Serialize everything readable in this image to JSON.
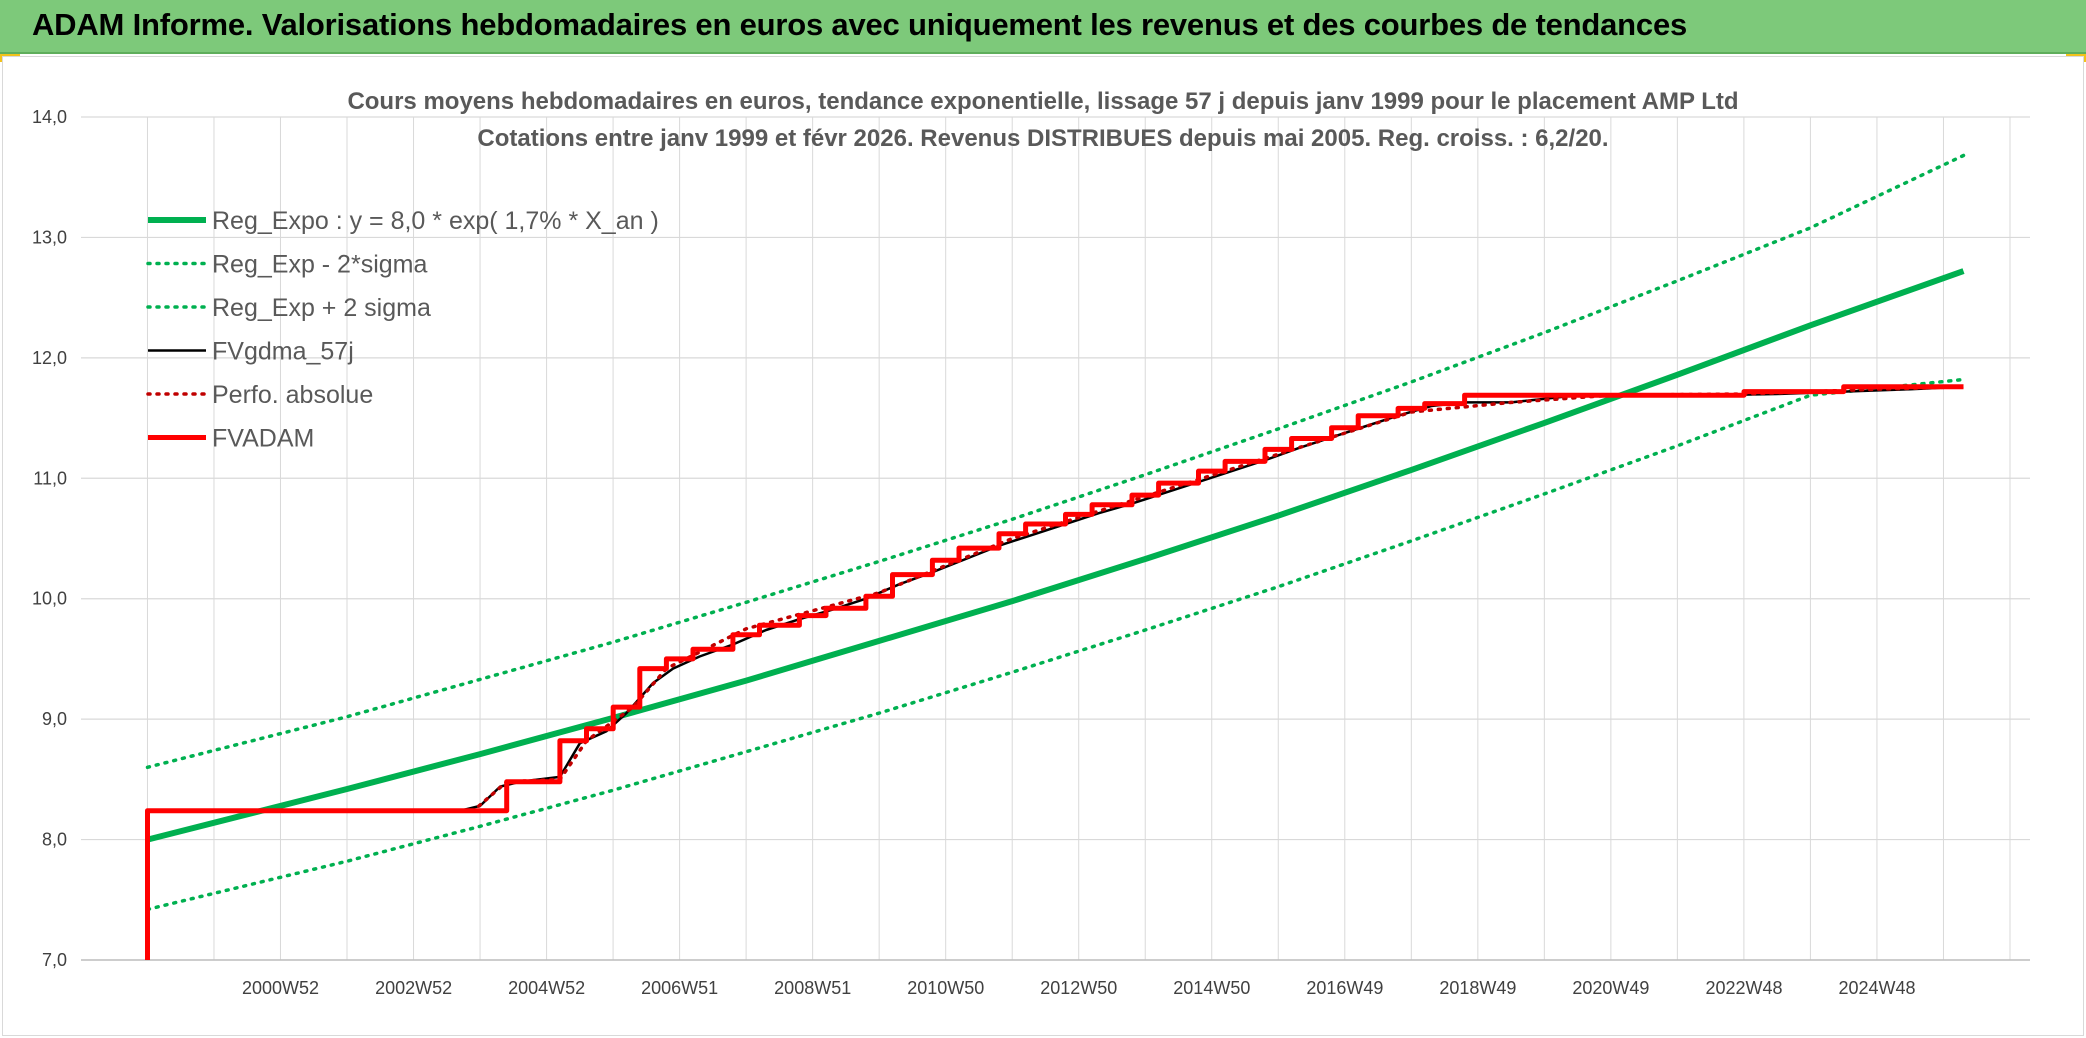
{
  "header": {
    "title": "ADAM Informe. Valorisations hebdomadaires en euros avec uniquement les revenus et des courbes de tendances"
  },
  "colors": {
    "banner": "#7dc97a",
    "trend": "#00b050",
    "smooth": "#000000",
    "perfo": "#c00000",
    "fvadam": "#ff0000",
    "grid": "#d9d9d9"
  },
  "chart_data": {
    "type": "line",
    "title": "Cours moyens hebdomadaires en euros, tendance exponentielle, lissage 57 j depuis janv 1999 pour le placement AMP Ltd",
    "subtitle": "Cotations entre janv 1999 et févr 2026. Revenus DISTRIBUES depuis mai 2005. Reg. croiss. : 6,2/20.",
    "xlabel": "",
    "ylabel": "",
    "ylim": [
      7.0,
      14.0
    ],
    "xlim": [
      1998.0,
      2027.3
    ],
    "y_ticks": [
      "7,0",
      "8,0",
      "9,0",
      "10,0",
      "11,0",
      "12,0",
      "13,0",
      "14,0"
    ],
    "x_tick_labels": [
      "2000W52",
      "2002W52",
      "2004W52",
      "2006W51",
      "2008W51",
      "2010W50",
      "2012W50",
      "2014W50",
      "2016W49",
      "2018W49",
      "2020W49",
      "2022W48",
      "2024W48"
    ],
    "grid": true,
    "legend_position": "top-left",
    "series": [
      {
        "name": "Reg_Expo : y = 8,0 * exp( 1,7% *  X_an )",
        "style": "solid-thick",
        "color": "#00b050",
        "x": [
          1999.0,
          2000.5,
          2002.0,
          2004.0,
          2006.0,
          2008.0,
          2010.0,
          2012.0,
          2014.0,
          2016.0,
          2018.0,
          2020.0,
          2022.0,
          2024.0,
          2026.3
        ],
        "values": [
          8.0,
          8.21,
          8.42,
          8.71,
          9.01,
          9.32,
          9.65,
          9.98,
          10.33,
          10.69,
          11.07,
          11.46,
          11.86,
          12.27,
          12.72
        ]
      },
      {
        "name": "Reg_Exp - 2*sigma",
        "style": "dotted",
        "color": "#00b050",
        "x": [
          1999.0,
          2002.0,
          2004.0,
          2006.0,
          2008.0,
          2010.0,
          2012.0,
          2014.0,
          2016.0,
          2018.0,
          2020.0,
          2022.0,
          2024.0,
          2026.3
        ],
        "values": [
          7.42,
          7.82,
          8.11,
          8.41,
          8.73,
          9.05,
          9.39,
          9.74,
          10.1,
          10.48,
          10.87,
          11.27,
          11.69,
          11.82
        ]
      },
      {
        "name": "Reg_Exp + 2 sigma",
        "style": "dotted",
        "color": "#00b050",
        "x": [
          1999.0,
          2002.0,
          2004.0,
          2006.0,
          2008.0,
          2010.0,
          2012.0,
          2014.0,
          2016.0,
          2018.0,
          2020.0,
          2022.0,
          2024.0,
          2026.3
        ],
        "values": [
          8.6,
          9.02,
          9.33,
          9.64,
          9.97,
          10.31,
          10.66,
          11.03,
          11.41,
          11.8,
          12.21,
          12.64,
          13.08,
          13.68
        ]
      },
      {
        "name": "FVgdma_57j",
        "style": "solid-thin",
        "color": "#000000",
        "x": [
          1999.0,
          2003.7,
          2004.0,
          2004.3,
          2004.6,
          2005.2,
          2005.5,
          2005.9,
          2006.2,
          2006.6,
          2006.9,
          2007.3,
          2007.8,
          2008.3,
          2008.8,
          2009.3,
          2009.8,
          2010.3,
          2010.8,
          2011.3,
          2011.8,
          2012.3,
          2012.8,
          2013.3,
          2013.8,
          2014.3,
          2014.8,
          2015.3,
          2015.8,
          2016.3,
          2016.8,
          2017.3,
          2017.8,
          2018.3,
          2018.8,
          2019.5,
          2020.5,
          2021.5,
          2022.5,
          2023.5,
          2024.5,
          2025.5,
          2026.3
        ],
        "values": [
          8.24,
          8.24,
          8.28,
          8.44,
          8.48,
          8.52,
          8.8,
          8.9,
          9.05,
          9.3,
          9.42,
          9.52,
          9.62,
          9.74,
          9.83,
          9.91,
          10.0,
          10.12,
          10.22,
          10.33,
          10.44,
          10.53,
          10.62,
          10.71,
          10.79,
          10.88,
          10.97,
          11.06,
          11.15,
          11.25,
          11.34,
          11.43,
          11.52,
          11.6,
          11.63,
          11.63,
          11.69,
          11.69,
          11.69,
          11.7,
          11.72,
          11.74,
          11.76
        ]
      },
      {
        "name": "Perfo. absolue",
        "style": "dotted",
        "color": "#c00000",
        "x": [
          1999.0,
          2003.9,
          2004.4,
          2005.2,
          2005.6,
          2006.3,
          2006.8,
          2008.0,
          2010.0,
          2012.0,
          2014.0,
          2016.0,
          2018.0,
          2019.5,
          2021.0,
          2023.0,
          2025.0,
          2026.3
        ],
        "values": [
          8.24,
          8.24,
          8.48,
          8.5,
          8.82,
          9.1,
          9.42,
          9.75,
          10.05,
          10.5,
          10.85,
          11.2,
          11.55,
          11.63,
          11.69,
          11.7,
          11.74,
          11.76
        ]
      },
      {
        "name": "FVADAM",
        "style": "step-thick",
        "color": "#ff0000",
        "x": [
          1999.0,
          1999.0,
          2004.4,
          2004.4,
          2005.2,
          2005.2,
          2005.6,
          2005.6,
          2006.0,
          2006.0,
          2006.4,
          2006.4,
          2006.8,
          2006.8,
          2007.2,
          2007.2,
          2007.8,
          2007.8,
          2008.2,
          2008.2,
          2008.8,
          2008.8,
          2009.2,
          2009.2,
          2009.8,
          2009.8,
          2010.2,
          2010.2,
          2010.8,
          2010.8,
          2011.2,
          2011.2,
          2011.8,
          2011.8,
          2012.2,
          2012.2,
          2012.8,
          2012.8,
          2013.2,
          2013.2,
          2013.8,
          2013.8,
          2014.2,
          2014.2,
          2014.8,
          2014.8,
          2015.2,
          2015.2,
          2015.8,
          2015.8,
          2016.2,
          2016.2,
          2016.8,
          2016.8,
          2017.2,
          2017.2,
          2017.8,
          2017.8,
          2018.2,
          2018.2,
          2018.8,
          2018.8,
          2020.5,
          2020.5,
          2023.0,
          2023.0,
          2024.5,
          2024.5,
          2026.3
        ],
        "values": [
          7.0,
          8.24,
          8.24,
          8.48,
          8.48,
          8.82,
          8.82,
          8.92,
          8.92,
          9.1,
          9.1,
          9.42,
          9.42,
          9.5,
          9.5,
          9.58,
          9.58,
          9.7,
          9.7,
          9.78,
          9.78,
          9.86,
          9.86,
          9.92,
          9.92,
          10.02,
          10.02,
          10.2,
          10.2,
          10.32,
          10.32,
          10.42,
          10.42,
          10.54,
          10.54,
          10.62,
          10.62,
          10.7,
          10.7,
          10.78,
          10.78,
          10.86,
          10.86,
          10.96,
          10.96,
          11.06,
          11.06,
          11.14,
          11.14,
          11.24,
          11.24,
          11.33,
          11.33,
          11.42,
          11.42,
          11.52,
          11.52,
          11.58,
          11.58,
          11.62,
          11.62,
          11.69,
          11.69,
          11.69,
          11.69,
          11.72,
          11.72,
          11.76,
          11.76
        ]
      }
    ]
  }
}
